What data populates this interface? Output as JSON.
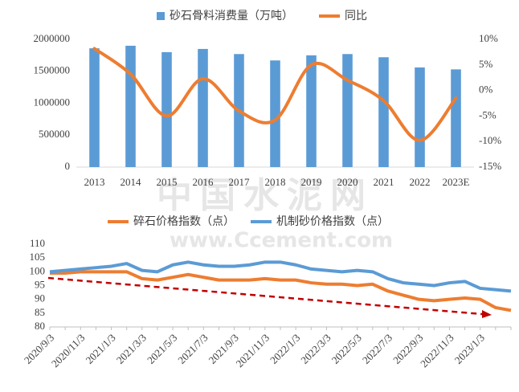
{
  "chart_data": [
    {
      "type": "bar",
      "categories": [
        "2013",
        "2014",
        "2015",
        "2016",
        "2017",
        "2018",
        "2019",
        "2020",
        "2021",
        "2022",
        "2023E"
      ],
      "series": [
        {
          "name": "砂石骨料消费量（万吨）",
          "type": "bar",
          "color": "#5b9bd5",
          "values": [
            1860000,
            1900000,
            1800000,
            1850000,
            1770000,
            1670000,
            1750000,
            1770000,
            1720000,
            1560000,
            1530000
          ]
        },
        {
          "name": "同比",
          "type": "line",
          "axis": "y2",
          "color": "#ed7d31",
          "values": [
            8.2,
            3.2,
            -5,
            2.3,
            -4,
            -5.8,
            5,
            2,
            -2,
            -9.8,
            -1.5
          ]
        }
      ],
      "ylim": [
        0,
        2000000
      ],
      "yticks": [
        0,
        500000,
        1000000,
        1500000,
        2000000
      ],
      "y2lim": [
        -15,
        10
      ],
      "y2ticks": [
        {
          "value": 10,
          "label": "10%"
        },
        {
          "value": 5,
          "label": "5%"
        },
        {
          "value": 0,
          "label": "0%"
        },
        {
          "value": -5,
          "label": "-5%"
        },
        {
          "value": -10,
          "label": "-10%"
        },
        {
          "value": -15,
          "label": "-15%"
        }
      ],
      "legend": "top"
    },
    {
      "type": "line",
      "categories": [
        "2020/9/3",
        null,
        "2020/11/3",
        null,
        "2021/1/3",
        null,
        "2021/3/3",
        null,
        "2021/5/3",
        null,
        "2021/7/3",
        null,
        "2021/9/3",
        null,
        "2021/11/3",
        null,
        "2022/1/3",
        null,
        "2022/3/3",
        null,
        "2022/5/3",
        null,
        "2022/7/3",
        null,
        "2022/9/3",
        null,
        "2022/11/3",
        null,
        "2023/1/3",
        null,
        null
      ],
      "series": [
        {
          "name": "碎石价格指数（点）",
          "color": "#ed7d31",
          "values": [
            99.5,
            99.5,
            100,
            100,
            100,
            100,
            97.5,
            97,
            98,
            99,
            98,
            97,
            97,
            97,
            97.5,
            97,
            97,
            96,
            95.5,
            95.5,
            95,
            95.5,
            93,
            91.5,
            90,
            89.5,
            90,
            90.5,
            90,
            87,
            86
          ]
        },
        {
          "name": "机制砂价格指数（点）",
          "color": "#5b9bd5",
          "values": [
            100,
            100.5,
            101,
            101.5,
            102,
            103,
            100.5,
            100,
            102.5,
            103.5,
            102.5,
            102,
            102,
            102.5,
            103.5,
            103.5,
            102.5,
            101,
            100.5,
            100,
            100.5,
            100,
            97.5,
            96,
            95.5,
            95,
            96,
            96.5,
            94,
            93.5,
            93
          ]
        }
      ],
      "ylim": [
        80,
        110
      ],
      "yticks": [
        80,
        85,
        90,
        95,
        100,
        105,
        110
      ],
      "legend": "top",
      "watermark": [
        "中国水泥网",
        "www.Ccement.com"
      ]
    }
  ]
}
